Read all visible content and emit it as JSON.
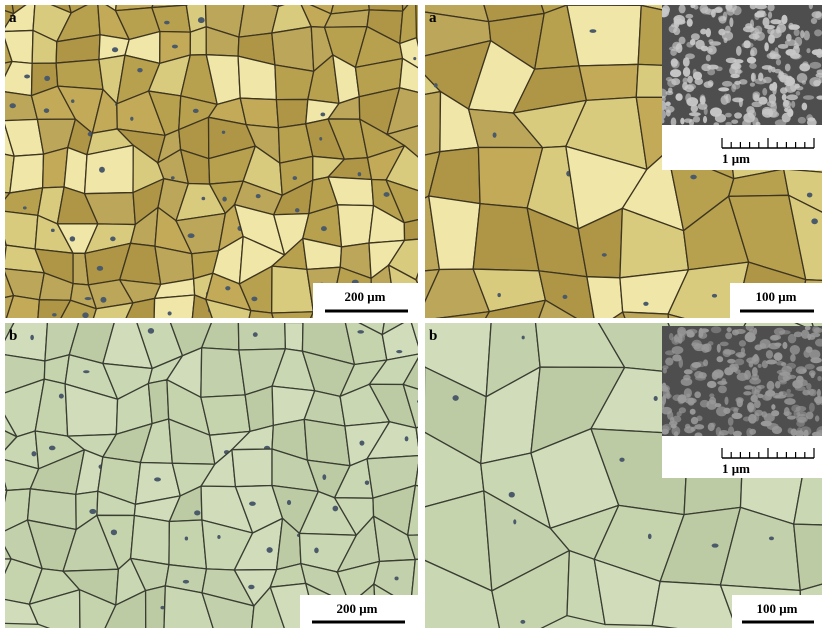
{
  "panels": [
    {
      "label": "a",
      "scale_bar": "200 μm"
    },
    {
      "label": "a",
      "scale_bar": "100 μm",
      "inset_scale": "1 μm"
    },
    {
      "label": "b",
      "scale_bar": "200 μm"
    },
    {
      "label": "b",
      "scale_bar": "100 μm",
      "inset_scale": "1 μm"
    }
  ]
}
